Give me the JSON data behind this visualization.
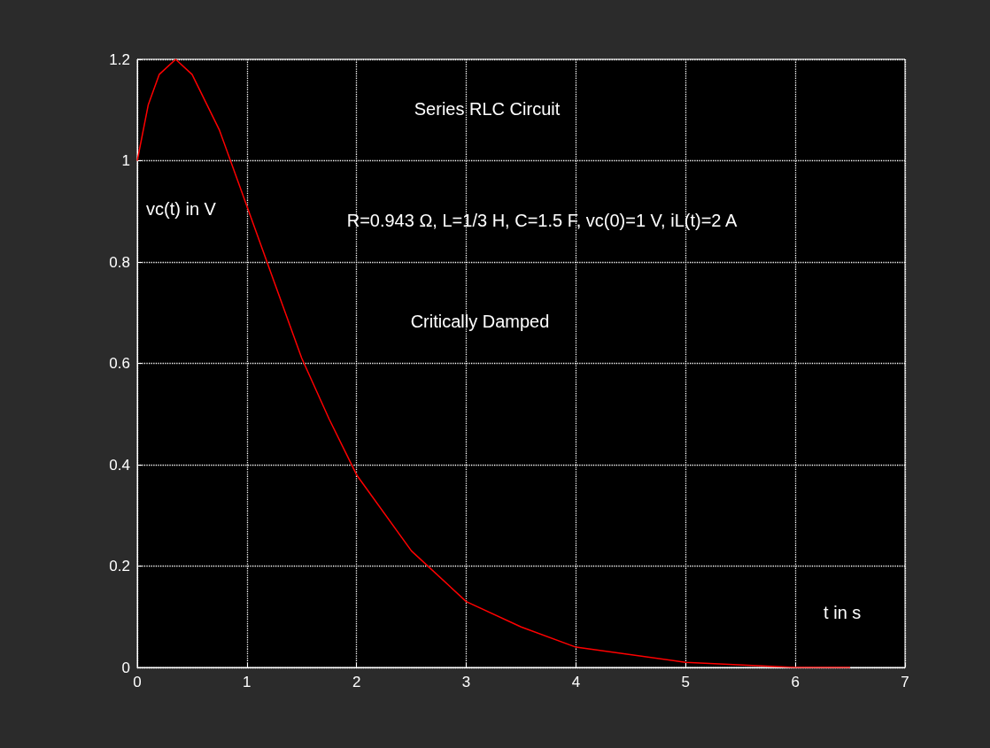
{
  "chart_data": {
    "type": "line",
    "title": "Series RLC Circuit",
    "xlabel": "t in s",
    "ylabel": "vc(t) in V",
    "annotations": [
      "R=0.943 Ω, L=1/3 H, C=1.5 F, vc(0)=1 V, iL(t)=2 A",
      "Critically Damped"
    ],
    "x": [
      0,
      0.1,
      0.2,
      0.35,
      0.5,
      0.75,
      1,
      1.25,
      1.5,
      1.75,
      2,
      2.5,
      3,
      3.5,
      4,
      5,
      6,
      6.5
    ],
    "series": [
      {
        "color": "#ff0000",
        "values": [
          1,
          1.11,
          1.17,
          1.2,
          1.17,
          1.06,
          0.91,
          0.76,
          0.61,
          0.49,
          0.38,
          0.23,
          0.13,
          0.08,
          0.04,
          0.01,
          0,
          0
        ]
      }
    ],
    "xlim": [
      0,
      7
    ],
    "ylim": [
      0,
      1.2
    ],
    "xticks": [
      0,
      1,
      2,
      3,
      4,
      5,
      6,
      7
    ],
    "yticks": [
      0,
      0.2,
      0.4,
      0.6,
      0.8,
      1,
      1.2
    ],
    "grid": true,
    "line_style": "solid"
  }
}
